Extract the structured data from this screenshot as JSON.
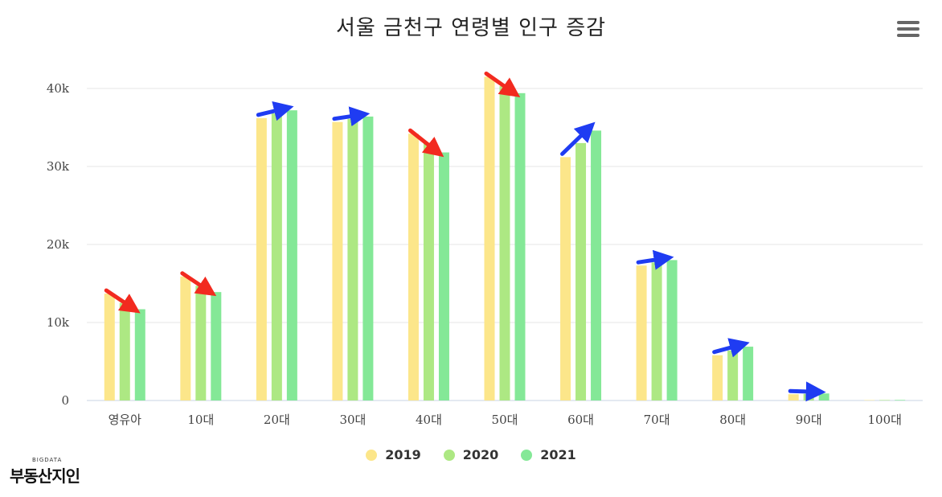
{
  "title": "서울 금천구 연령별 인구 증감",
  "logo": {
    "small": "BIGDATA",
    "main": "부동산지인"
  },
  "colors": {
    "2019": "#fce68a",
    "2020": "#ade883",
    "2021": "#84e897",
    "arrow_down": "#f22a1f",
    "arrow_up": "#1f3cf2",
    "grid": "#e6e6e6"
  },
  "chart_data": {
    "type": "bar",
    "title": "서울 금천구 연령별 인구 증감",
    "categories": [
      "영유아",
      "10대",
      "20대",
      "30대",
      "40대",
      "50대",
      "60대",
      "70대",
      "80대",
      "90대",
      "100대"
    ],
    "series": [
      {
        "name": "2019",
        "values": [
          13700,
          15900,
          36200,
          35700,
          34200,
          41500,
          31200,
          17300,
          5800,
          800,
          50
        ]
      },
      {
        "name": "2020",
        "values": [
          12500,
          14700,
          36800,
          36100,
          33000,
          40300,
          33000,
          17700,
          6400,
          850,
          60
        ]
      },
      {
        "name": "2021",
        "values": [
          11700,
          13900,
          37200,
          36400,
          31800,
          39400,
          34600,
          18000,
          6900,
          900,
          70
        ]
      }
    ],
    "yticks": [
      "0",
      "10k",
      "20k",
      "30k",
      "40k"
    ],
    "ylim": [
      0,
      45000
    ],
    "grid": true,
    "legend_position": "bottom-center",
    "arrows": [
      "down",
      "down",
      "up",
      "up",
      "down",
      "down",
      "up",
      "up",
      "up",
      "up",
      "none"
    ]
  }
}
